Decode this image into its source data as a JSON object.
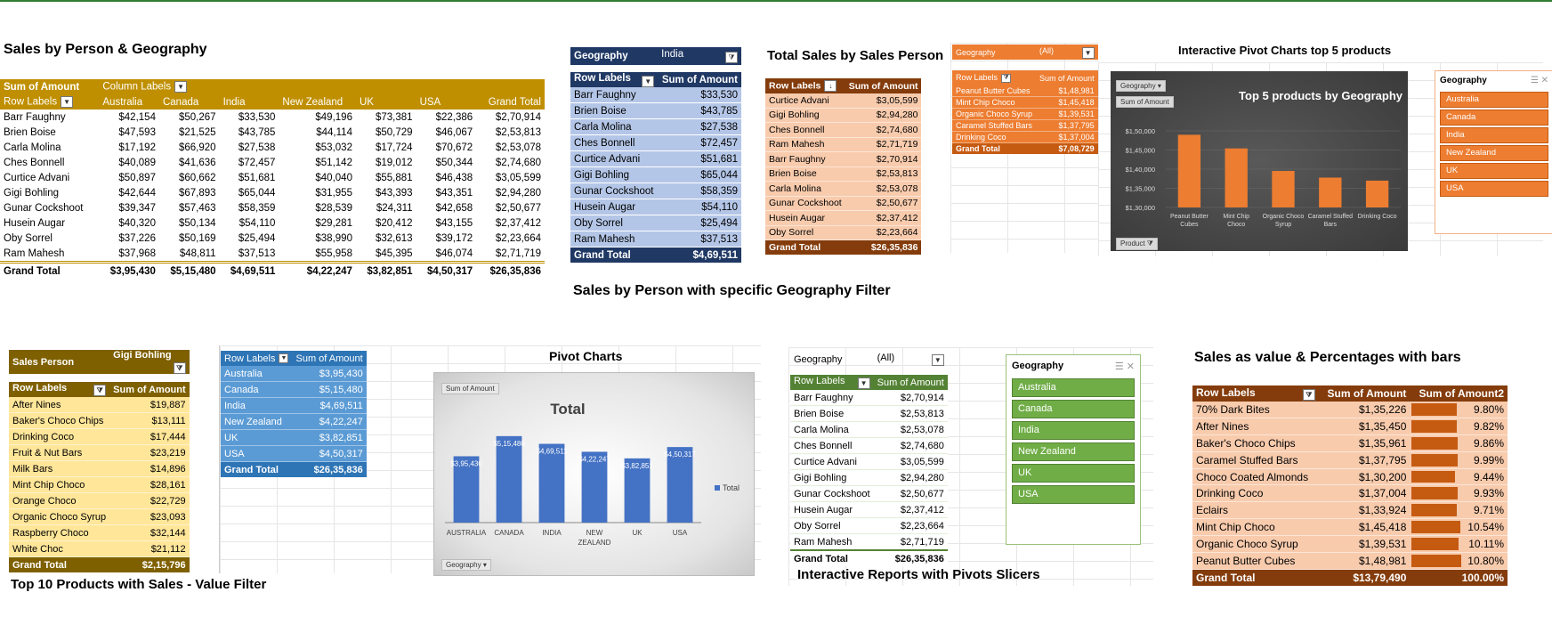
{
  "colors": {
    "gold": "#bf8f00",
    "darkgold": "#7f6000",
    "navy": "#1f3864",
    "lightblue": "#b4c6e7",
    "peach": "#f8cbad",
    "brown": "#843c0c",
    "orange": "#ed7d31",
    "green": "#70ad47",
    "darkgreen": "#548235",
    "yellow": "#ffe699",
    "blue": "#5b9bd5",
    "midblue": "#4472c4"
  },
  "p1": {
    "title": "Sales by Person & Geography",
    "sum_label": "Sum of Amount",
    "col_labels": "Column Labels",
    "row_labels": "Row Labels",
    "headers": [
      "Australia",
      "Canada",
      "India",
      "New Zealand",
      "UK",
      "USA",
      "Grand Total"
    ],
    "rows": [
      [
        "Barr Faughny",
        "$42,154",
        "$50,267",
        "$33,530",
        "$49,196",
        "$73,381",
        "$22,386",
        "$2,70,914"
      ],
      [
        "Brien Boise",
        "$47,593",
        "$21,525",
        "$43,785",
        "$44,114",
        "$50,729",
        "$46,067",
        "$2,53,813"
      ],
      [
        "Carla Molina",
        "$17,192",
        "$66,920",
        "$27,538",
        "$53,032",
        "$17,724",
        "$70,672",
        "$2,53,078"
      ],
      [
        "Ches Bonnell",
        "$40,089",
        "$41,636",
        "$72,457",
        "$51,142",
        "$19,012",
        "$50,344",
        "$2,74,680"
      ],
      [
        "Curtice Advani",
        "$50,897",
        "$60,662",
        "$51,681",
        "$40,040",
        "$55,881",
        "$46,438",
        "$3,05,599"
      ],
      [
        "Gigi Bohling",
        "$42,644",
        "$67,893",
        "$65,044",
        "$31,955",
        "$43,393",
        "$43,351",
        "$2,94,280"
      ],
      [
        "Gunar Cockshoot",
        "$39,347",
        "$57,463",
        "$58,359",
        "$28,539",
        "$24,311",
        "$42,658",
        "$2,50,677"
      ],
      [
        "Husein Augar",
        "$40,320",
        "$50,134",
        "$54,110",
        "$29,281",
        "$20,412",
        "$43,155",
        "$2,37,412"
      ],
      [
        "Oby Sorrel",
        "$37,226",
        "$50,169",
        "$25,494",
        "$38,990",
        "$32,613",
        "$39,172",
        "$2,23,664"
      ],
      [
        "Ram Mahesh",
        "$37,968",
        "$48,811",
        "$37,513",
        "$55,958",
        "$45,395",
        "$46,074",
        "$2,71,719"
      ]
    ],
    "total": [
      "Grand Total",
      "$3,95,430",
      "$5,15,480",
      "$4,69,511",
      "$4,22,247",
      "$3,82,851",
      "$4,50,317",
      "$26,35,836"
    ]
  },
  "p2": {
    "geo_label": "Geography",
    "geo_value": "India",
    "row_labels": "Row Labels",
    "sum_label": "Sum of Amount",
    "rows": [
      [
        "Barr Faughny",
        "$33,530"
      ],
      [
        "Brien Boise",
        "$43,785"
      ],
      [
        "Carla Molina",
        "$27,538"
      ],
      [
        "Ches Bonnell",
        "$72,457"
      ],
      [
        "Curtice Advani",
        "$51,681"
      ],
      [
        "Gigi Bohling",
        "$65,044"
      ],
      [
        "Gunar Cockshoot",
        "$58,359"
      ],
      [
        "Husein Augar",
        "$54,110"
      ],
      [
        "Oby Sorrel",
        "$25,494"
      ],
      [
        "Ram Mahesh",
        "$37,513"
      ]
    ],
    "total": [
      "Grand Total",
      "$4,69,511"
    ],
    "caption": "Sales by Person with specific Geography Filter"
  },
  "p3": {
    "title": "Total Sales by Sales Person",
    "row_labels": "Row Labels",
    "sum_label": "Sum of Amount",
    "rows": [
      [
        "Curtice Advani",
        "$3,05,599"
      ],
      [
        "Gigi Bohling",
        "$2,94,280"
      ],
      [
        "Ches Bonnell",
        "$2,74,680"
      ],
      [
        "Ram Mahesh",
        "$2,71,719"
      ],
      [
        "Barr Faughny",
        "$2,70,914"
      ],
      [
        "Brien Boise",
        "$2,53,813"
      ],
      [
        "Carla Molina",
        "$2,53,078"
      ],
      [
        "Gunar Cockshoot",
        "$2,50,677"
      ],
      [
        "Husein Augar",
        "$2,37,412"
      ],
      [
        "Oby Sorrel",
        "$2,23,664"
      ]
    ],
    "total": [
      "Grand Total",
      "$26,35,836"
    ]
  },
  "p4": {
    "geo_label": "Geography",
    "geo_value": "(All)",
    "row_labels": "Row Labels",
    "sum_label": "Sum of Amount",
    "rows": [
      [
        "Peanut Butter Cubes",
        "$1,48,981"
      ],
      [
        "Mint Chip Choco",
        "$1,45,418"
      ],
      [
        "Organic Choco Syrup",
        "$1,39,531"
      ],
      [
        "Caramel Stuffed Bars",
        "$1,37,795"
      ],
      [
        "Drinking Coco",
        "$1,37,004"
      ]
    ],
    "total": [
      "Grand Total",
      "$7,08,729"
    ]
  },
  "c1": {
    "section_title": "Interactive Pivot Charts top 5 products",
    "geo_btn": "Geography",
    "sum_btn": "Sum of Amount",
    "product_btn": "Product",
    "chart_title": "Top 5 products by Geography"
  },
  "slicer1": {
    "title": "Geography",
    "items": [
      "Australia",
      "Canada",
      "India",
      "New Zealand",
      "UK",
      "USA"
    ]
  },
  "p5": {
    "sp_label": "Sales Person",
    "sp_value": "Gigi Bohling",
    "row_labels": "Row Labels",
    "sum_label": "Sum of Amount",
    "rows": [
      [
        "After Nines",
        "$19,887"
      ],
      [
        "Baker's Choco Chips",
        "$13,111"
      ],
      [
        "Drinking Coco",
        "$17,444"
      ],
      [
        "Fruit & Nut Bars",
        "$23,219"
      ],
      [
        "Milk Bars",
        "$14,896"
      ],
      [
        "Mint Chip Choco",
        "$28,161"
      ],
      [
        "Orange Choco",
        "$22,729"
      ],
      [
        "Organic Choco Syrup",
        "$23,093"
      ],
      [
        "Raspberry Choco",
        "$32,144"
      ],
      [
        "White Choc",
        "$21,112"
      ]
    ],
    "total": [
      "Grand Total",
      "$2,15,796"
    ],
    "caption": "Top 10 Products with Sales - Value Filter"
  },
  "p6": {
    "row_labels": "Row Labels",
    "sum_label": "Sum of Amount",
    "rows": [
      [
        "Australia",
        "$3,95,430"
      ],
      [
        "Canada",
        "$5,15,480"
      ],
      [
        "India",
        "$4,69,511"
      ],
      [
        "New Zealand",
        "$4,22,247"
      ],
      [
        "UK",
        "$3,82,851"
      ],
      [
        "USA",
        "$4,50,317"
      ]
    ],
    "total": [
      "Grand Total",
      "$26,35,836"
    ]
  },
  "c2": {
    "section_title": "Pivot Charts",
    "sum_btn": "Sum of Amount",
    "geo_btn": "Geography",
    "chart_title": "Total",
    "legend": "Total"
  },
  "p7": {
    "geo_label": "Geography",
    "geo_value": "(All)",
    "row_labels": "Row Labels",
    "sum_label": "Sum of Amount",
    "rows": [
      [
        "Barr Faughny",
        "$2,70,914"
      ],
      [
        "Brien Boise",
        "$2,53,813"
      ],
      [
        "Carla Molina",
        "$2,53,078"
      ],
      [
        "Ches Bonnell",
        "$2,74,680"
      ],
      [
        "Curtice Advani",
        "$3,05,599"
      ],
      [
        "Gigi Bohling",
        "$2,94,280"
      ],
      [
        "Gunar Cockshoot",
        "$2,50,677"
      ],
      [
        "Husein Augar",
        "$2,37,412"
      ],
      [
        "Oby Sorrel",
        "$2,23,664"
      ],
      [
        "Ram Mahesh",
        "$2,71,719"
      ]
    ],
    "total": [
      "Grand Total",
      "$26,35,836"
    ],
    "caption": "Interactive Reports with Pivots Slicers"
  },
  "slicer2": {
    "title": "Geography",
    "items": [
      "Australia",
      "Canada",
      "India",
      "New Zealand",
      "UK",
      "USA"
    ]
  },
  "p8": {
    "title": "Sales as value & Percentages with bars",
    "row_labels": "Row Labels",
    "sum_label": "Sum of Amount",
    "sum2_label": "Sum of Amount2",
    "rows": [
      [
        "70% Dark Bites",
        "$1,35,226",
        "9.80%"
      ],
      [
        "After Nines",
        "$1,35,450",
        "9.82%"
      ],
      [
        "Baker's Choco Chips",
        "$1,35,961",
        "9.86%"
      ],
      [
        "Caramel Stuffed Bars",
        "$1,37,795",
        "9.99%"
      ],
      [
        "Choco Coated Almonds",
        "$1,30,200",
        "9.44%"
      ],
      [
        "Drinking Coco",
        "$1,37,004",
        "9.93%"
      ],
      [
        "Eclairs",
        "$1,33,924",
        "9.71%"
      ],
      [
        "Mint Chip Choco",
        "$1,45,418",
        "10.54%"
      ],
      [
        "Organic Choco Syrup",
        "$1,39,531",
        "10.11%"
      ],
      [
        "Peanut Butter Cubes",
        "$1,48,981",
        "10.80%"
      ]
    ],
    "pct_values": [
      9.8,
      9.82,
      9.86,
      9.99,
      9.44,
      9.93,
      9.71,
      10.54,
      10.11,
      10.8
    ],
    "total": [
      "Grand Total",
      "$13,79,490",
      "100.00%"
    ]
  },
  "chart_data": [
    {
      "type": "bar",
      "title": "Top 5 products by Geography",
      "categories": [
        "Peanut Butter Cubes",
        "Mint Chip Choco",
        "Organic Choco Syrup",
        "Caramel Stuffed Bars",
        "Drinking Coco"
      ],
      "values": [
        148981,
        145418,
        139531,
        137795,
        137004
      ],
      "y_ticks": [
        "$1,30,000",
        "$1,35,000",
        "$1,40,000",
        "$1,45,000",
        "$1,50,000"
      ],
      "ylim": [
        130000,
        150000
      ],
      "color": "#ed7d31"
    },
    {
      "type": "bar",
      "title": "Total",
      "categories": [
        "AUSTRALIA",
        "CANADA",
        "INDIA",
        "NEW ZEALAND",
        "UK",
        "USA"
      ],
      "values": [
        395430,
        515480,
        469511,
        422247,
        382851,
        450317
      ],
      "data_labels": [
        "$3,95,430",
        "$5,15,480",
        "$4,69,511",
        "$4,22,247",
        "$3,82,851",
        "$4,50,317"
      ],
      "series": [
        {
          "name": "Total",
          "values": [
            395430,
            515480,
            469511,
            422247,
            382851,
            450317
          ]
        }
      ],
      "legend": "right",
      "ylim": [
        0,
        520000
      ],
      "color": "#4472c4"
    }
  ]
}
